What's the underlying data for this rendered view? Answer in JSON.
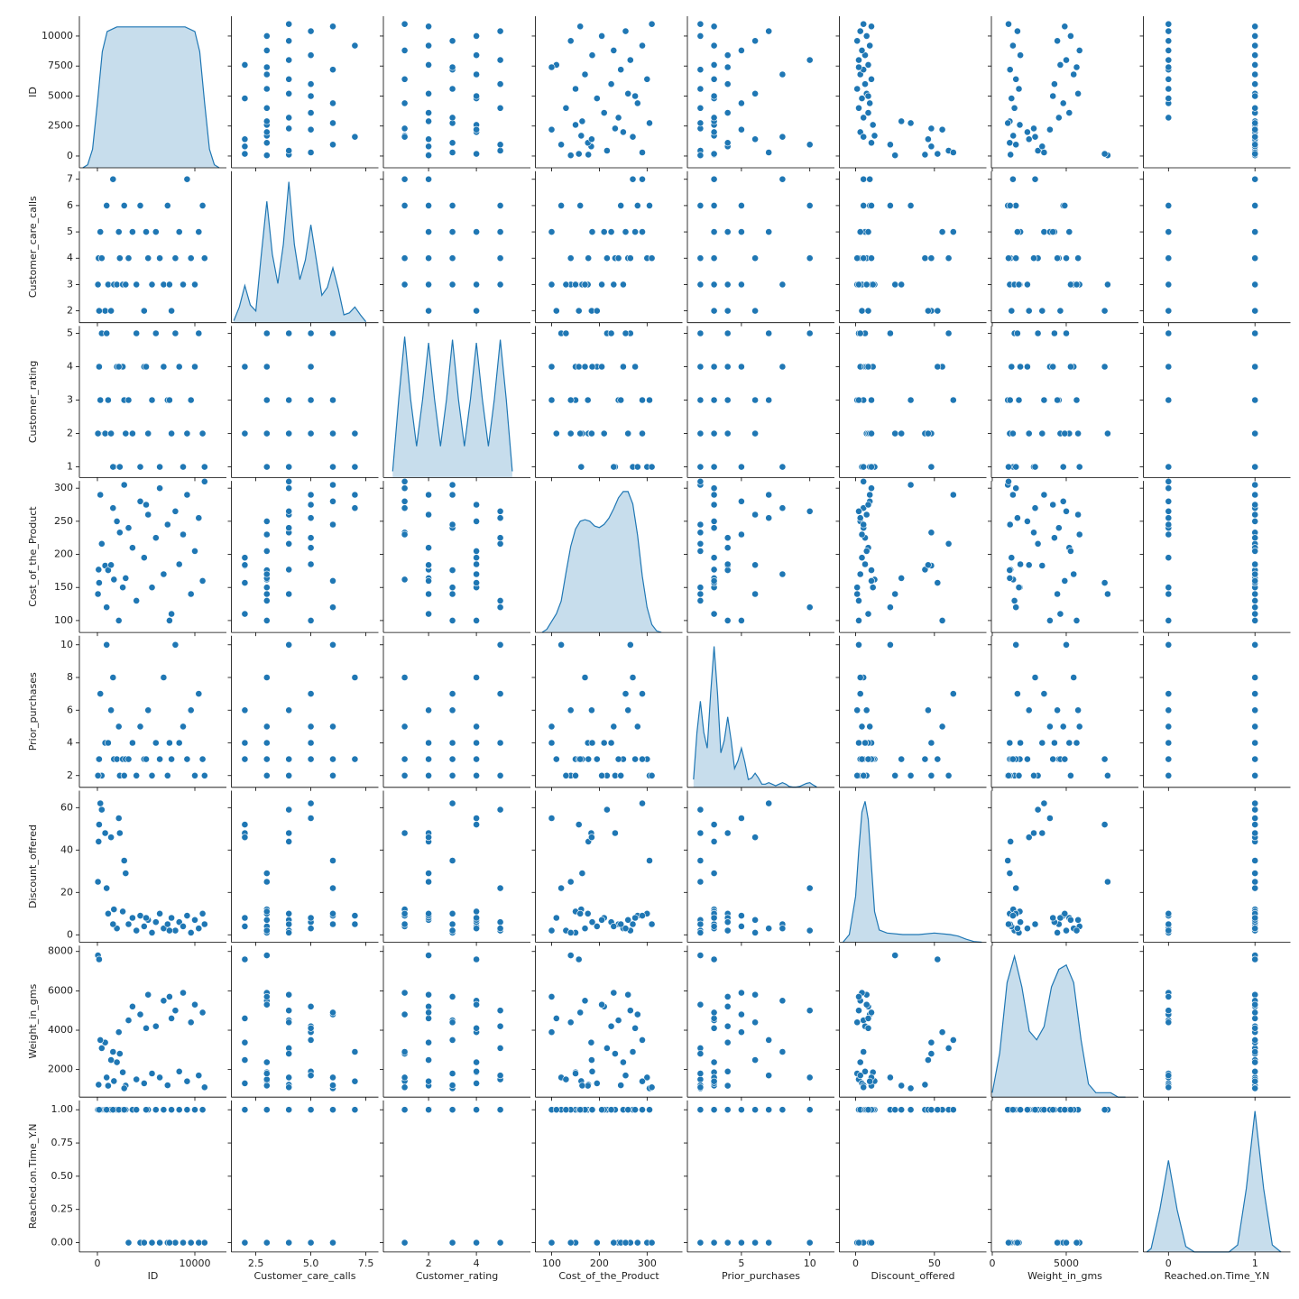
{
  "chart_data": {
    "type": "pairplot",
    "color": "#1f77b4",
    "variables": [
      {
        "name": "ID",
        "xlim": [
          -1850,
          13240
        ],
        "ylim": [
          -980,
          11650
        ],
        "xticks": [
          0,
          10000
        ],
        "yticks": [
          0,
          2500,
          5000,
          7500,
          10000
        ],
        "kde_x": [
          -1500,
          -1000,
          -500,
          0,
          500,
          1000,
          2000,
          5000,
          9000,
          10000,
          10500,
          11000,
          11500,
          12000,
          12500
        ],
        "kde_density": [
          0,
          2e-06,
          1.2e-05,
          4.2e-05,
          7.5e-05,
          8.8e-05,
          9.1e-05,
          9.1e-05,
          9.1e-05,
          8.8e-05,
          7.5e-05,
          4.2e-05,
          1.2e-05,
          2e-06,
          0
        ]
      },
      {
        "name": "Customer_care_calls",
        "xlim": [
          1.39,
          8.07
        ],
        "ylim": [
          1.55,
          7.31
        ],
        "xticks": [
          2.5,
          {
            "value": 5,
            "label": "5.0"
          },
          7.5
        ],
        "yticks": [
          2,
          3,
          4,
          5,
          6,
          7
        ],
        "kde_x": [
          1.5,
          1.75,
          2,
          2.25,
          2.5,
          2.75,
          3,
          3.25,
          3.5,
          3.75,
          4,
          4.25,
          4.5,
          4.75,
          5,
          5.25,
          5.5,
          5.75,
          6,
          6.25,
          6.5,
          6.75,
          7,
          7.25,
          7.5
        ],
        "kde_density": [
          0.01,
          0.08,
          0.19,
          0.09,
          0.06,
          0.35,
          0.62,
          0.35,
          0.2,
          0.4,
          0.72,
          0.4,
          0.22,
          0.32,
          0.5,
          0.32,
          0.14,
          0.18,
          0.28,
          0.17,
          0.04,
          0.05,
          0.08,
          0.04,
          0.005
        ]
      },
      {
        "name": "Customer_rating",
        "xlim": [
          0.11,
          6.26
        ],
        "ylim": [
          0.68,
          5.22
        ],
        "xticks": [
          2,
          4
        ],
        "yticks": [
          1,
          2,
          3,
          4,
          5
        ],
        "kde_x": [
          0.5,
          0.75,
          1,
          1.25,
          1.5,
          1.75,
          2,
          2.25,
          2.5,
          2.75,
          3,
          3.25,
          3.5,
          3.75,
          4,
          4.25,
          4.5,
          4.75,
          5,
          5.25,
          5.5
        ],
        "kde_density": [
          0.02,
          0.25,
          0.45,
          0.25,
          0.1,
          0.25,
          0.43,
          0.25,
          0.1,
          0.25,
          0.44,
          0.25,
          0.1,
          0.25,
          0.43,
          0.25,
          0.1,
          0.25,
          0.44,
          0.25,
          0.02
        ]
      },
      {
        "name": "Cost_of_the_Product",
        "xlim": [
          66,
          374
        ],
        "ylim": [
          82,
          311
        ],
        "xticks": [
          100,
          200,
          300
        ],
        "yticks": [
          100,
          150,
          200,
          250,
          300
        ],
        "kde_x": [
          80,
          90,
          100,
          110,
          120,
          130,
          140,
          150,
          160,
          170,
          180,
          190,
          200,
          210,
          220,
          230,
          240,
          250,
          260,
          270,
          280,
          290,
          300,
          310,
          320,
          330
        ],
        "kde_density": [
          0,
          0.0002,
          0.0007,
          0.0012,
          0.002,
          0.0038,
          0.0055,
          0.0066,
          0.0071,
          0.0072,
          0.0071,
          0.0068,
          0.0067,
          0.0069,
          0.0073,
          0.0079,
          0.0086,
          0.009,
          0.009,
          0.0082,
          0.0062,
          0.0036,
          0.0016,
          0.0005,
          0.0001,
          0
        ]
      },
      {
        "name": "Prior_purchases",
        "xlim": [
          1.05,
          11.8
        ],
        "ylim": [
          1.28,
          10.55
        ],
        "xticks": [
          5,
          10
        ],
        "yticks": [
          2,
          4,
          6,
          8,
          10
        ],
        "kde_x": [
          1.5,
          1.75,
          2,
          2.25,
          2.5,
          2.75,
          3,
          3.25,
          3.5,
          3.75,
          4,
          4.25,
          4.5,
          4.75,
          5,
          5.25,
          5.5,
          5.75,
          6,
          6.25,
          6.5,
          6.75,
          7,
          7.25,
          7.5,
          7.75,
          8,
          8.25,
          8.5,
          8.75,
          9,
          9.25,
          9.5,
          9.75,
          10,
          10.25,
          10.5
        ],
        "kde_density": [
          0.05,
          0.35,
          0.55,
          0.35,
          0.25,
          0.6,
          0.9,
          0.6,
          0.22,
          0.3,
          0.45,
          0.3,
          0.12,
          0.17,
          0.25,
          0.16,
          0.05,
          0.06,
          0.09,
          0.06,
          0.02,
          0.02,
          0.03,
          0.02,
          0.01,
          0.02,
          0.03,
          0.02,
          0.005,
          0.002,
          0.002,
          0.005,
          0.015,
          0.025,
          0.03,
          0.015,
          0.003
        ]
      },
      {
        "name": "Discount_offered",
        "xlim": [
          -10.3,
          83
        ],
        "ylim": [
          -3.5,
          68
        ],
        "xticks": [
          0,
          50
        ],
        "yticks": [
          0,
          20,
          40,
          60
        ],
        "kde_x": [
          -8,
          -4,
          0,
          2,
          4,
          6,
          8,
          10,
          12,
          15,
          20,
          30,
          40,
          50,
          60,
          65,
          70,
          75,
          80
        ],
        "kde_density": [
          0,
          0.005,
          0.03,
          0.06,
          0.085,
          0.092,
          0.08,
          0.05,
          0.02,
          0.008,
          0.006,
          0.005,
          0.005,
          0.006,
          0.005,
          0.004,
          0.002,
          0.0005,
          0
        ]
      },
      {
        "name": "Weight_in_gms",
        "xlim": [
          -60,
          9880
        ],
        "ylim": [
          600,
          8300
        ],
        "xticks": [
          0,
          5000
        ],
        "yticks": [
          2000,
          4000,
          6000,
          8000
        ],
        "kde_x": [
          0,
          500,
          1000,
          1500,
          2000,
          2500,
          3000,
          3500,
          4000,
          4500,
          5000,
          5500,
          6000,
          6500,
          7000,
          7500,
          8000,
          8500,
          9000
        ],
        "kde_density": [
          1e-05,
          0.0001,
          0.00026,
          0.00032,
          0.00025,
          0.00015,
          0.00013,
          0.00016,
          0.00025,
          0.00029,
          0.0003,
          0.00026,
          0.00013,
          3e-05,
          1e-05,
          1e-05,
          1e-05,
          0,
          0
        ]
      },
      {
        "name": "Reached.on.Time_Y.N",
        "xlim": [
          -0.29,
          1.41
        ],
        "ylim": [
          -0.07,
          1.07
        ],
        "xticks": [
          0,
          1
        ],
        "yticks": [
          {
            "value": 0,
            "label": "0.00"
          },
          0.25,
          {
            "value": 0.5,
            "label": "0.50"
          },
          0.75,
          {
            "value": 1,
            "label": "1.00"
          }
        ],
        "kde_x": [
          -0.25,
          -0.2,
          -0.1,
          0,
          0.1,
          0.2,
          0.3,
          0.4,
          0.5,
          0.6,
          0.7,
          0.8,
          0.9,
          1,
          1.1,
          1.2,
          1.3
        ],
        "kde_density": [
          0,
          0.05,
          0.6,
          1.3,
          0.6,
          0.08,
          0,
          0,
          0,
          0,
          0,
          0.1,
          0.9,
          2,
          0.9,
          0.1,
          0
        ]
      }
    ],
    "rows": [
      [
        120,
        4,
        2,
        177,
        3,
        44,
        1233,
        1
      ],
      [
        450,
        4,
        5,
        216,
        2,
        59,
        3088,
        1
      ],
      [
        800,
        2,
        2,
        183,
        4,
        48,
        3374,
        1
      ],
      [
        1100,
        3,
        3,
        176,
        4,
        10,
        1177,
        1
      ],
      [
        1400,
        2,
        2,
        184,
        6,
        46,
        2484,
        1
      ],
      [
        1700,
        3,
        1,
        162,
        3,
        12,
        1417,
        1
      ],
      [
        2000,
        3,
        4,
        250,
        3,
        3,
        2371,
        1
      ],
      [
        2300,
        4,
        1,
        233,
        2,
        48,
        2804,
        1
      ],
      [
        2600,
        3,
        4,
        150,
        3,
        11,
        1861,
        1
      ],
      [
        2900,
        3,
        2,
        164,
        3,
        29,
        1187,
        1
      ],
      [
        300,
        5,
        3,
        290,
        7,
        62,
        3500,
        1
      ],
      [
        950,
        6,
        5,
        120,
        10,
        22,
        1600,
        1
      ],
      [
        1600,
        7,
        1,
        270,
        8,
        5,
        2900,
        1
      ],
      [
        2200,
        5,
        4,
        100,
        5,
        55,
        3900,
        1
      ],
      [
        2750,
        6,
        3,
        305,
        2,
        35,
        1050,
        1
      ],
      [
        60,
        3,
        2,
        140,
        2,
        25,
        7800,
        1
      ],
      [
        180,
        2,
        4,
        157,
        3,
        52,
        7600,
        1
      ],
      [
        3200,
        4,
        3,
        240,
        3,
        5,
        4500,
        0
      ],
      [
        3600,
        5,
        2,
        210,
        4,
        8,
        5200,
        1
      ],
      [
        4000,
        3,
        5,
        130,
        2,
        2,
        1500,
        1
      ],
      [
        4400,
        6,
        1,
        280,
        5,
        9,
        4800,
        0
      ],
      [
        4800,
        2,
        4,
        195,
        3,
        4,
        1300,
        0
      ],
      [
        5200,
        4,
        2,
        260,
        6,
        7,
        5800,
        1
      ],
      [
        5600,
        3,
        3,
        150,
        2,
        1,
        1800,
        0
      ],
      [
        6000,
        5,
        5,
        225,
        4,
        6,
        4200,
        1
      ],
      [
        6400,
        4,
        1,
        300,
        3,
        10,
        1600,
        0
      ],
      [
        6800,
        3,
        4,
        170,
        8,
        3,
        5500,
        1
      ],
      [
        7200,
        6,
        3,
        245,
        2,
        5,
        1200,
        0
      ],
      [
        7600,
        2,
        2,
        110,
        3,
        8,
        4600,
        1
      ],
      [
        8000,
        4,
        5,
        265,
        10,
        2,
        5000,
        0
      ],
      [
        8400,
        5,
        4,
        185,
        4,
        6,
        1900,
        1
      ],
      [
        8800,
        3,
        1,
        230,
        5,
        4,
        5900,
        0
      ],
      [
        9200,
        7,
        2,
        290,
        3,
        9,
        1400,
        1
      ],
      [
        9600,
        4,
        3,
        140,
        6,
        1,
        4400,
        0
      ],
      [
        10000,
        3,
        4,
        205,
        2,
        7,
        5300,
        1
      ],
      [
        10400,
        5,
        5,
        255,
        7,
        3,
        1700,
        0
      ],
      [
        10800,
        6,
        2,
        160,
        3,
        10,
        4900,
        1
      ],
      [
        10999,
        4,
        1,
        310,
        2,
        5,
        1100,
        0
      ],
      [
        7400,
        3,
        3,
        100,
        4,
        2,
        5700,
        0
      ],
      [
        5000,
        5,
        4,
        275,
        3,
        8,
        4100,
        1
      ]
    ]
  }
}
